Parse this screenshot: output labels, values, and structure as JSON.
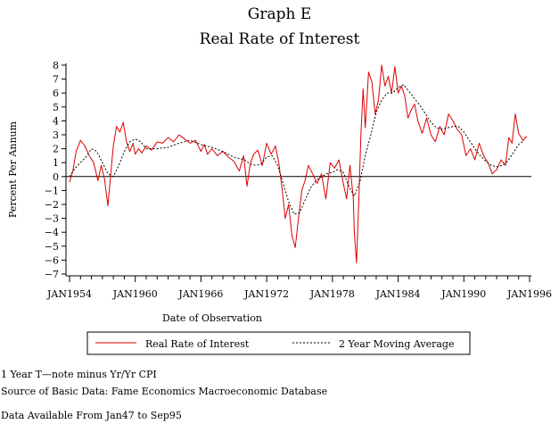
{
  "chart_data": {
    "type": "line",
    "title": "Graph E",
    "subtitle": "Real Rate of Interest",
    "xlabel": "Date of Observation",
    "ylabel": "Percent Per Annum",
    "ylim": [
      -7,
      8
    ],
    "xlim": [
      1954,
      1996
    ],
    "x_ticks": [
      "JAN1954",
      "JAN1960",
      "JAN1966",
      "JAN1972",
      "JAN1978",
      "JAN1984",
      "JAN1990",
      "JAN1996"
    ],
    "y_ticks": [
      8,
      7,
      6,
      5,
      4,
      3,
      2,
      1,
      0,
      -1,
      -2,
      -3,
      -4,
      -5,
      -6,
      -7
    ],
    "y_tick_labels": [
      "8",
      "7",
      "6",
      "5",
      "4",
      "3",
      "2",
      "1",
      "0",
      "−1",
      "−2",
      "−3",
      "−4",
      "−5",
      "−6",
      "−7"
    ],
    "grid": false,
    "legend_position": "bottom",
    "series": [
      {
        "name": "Real Rate of Interest",
        "color": "#dd0000",
        "style": "solid",
        "x": [
          1954.0,
          1954.3,
          1954.6,
          1955.0,
          1955.4,
          1955.8,
          1956.2,
          1956.6,
          1956.9,
          1957.2,
          1957.5,
          1957.8,
          1958.0,
          1958.3,
          1958.6,
          1958.9,
          1959.2,
          1959.5,
          1959.8,
          1960.0,
          1960.3,
          1960.6,
          1961.0,
          1961.5,
          1962.0,
          1962.5,
          1963.0,
          1963.5,
          1964.0,
          1964.5,
          1965.0,
          1965.5,
          1966.0,
          1966.3,
          1966.6,
          1967.0,
          1967.5,
          1968.0,
          1968.5,
          1969.0,
          1969.5,
          1969.9,
          1970.2,
          1970.5,
          1970.8,
          1971.2,
          1971.6,
          1972.0,
          1972.4,
          1972.8,
          1973.1,
          1973.4,
          1973.7,
          1974.0,
          1974.3,
          1974.6,
          1974.9,
          1975.2,
          1975.5,
          1975.8,
          1976.2,
          1976.6,
          1977.0,
          1977.4,
          1977.8,
          1978.2,
          1978.6,
          1979.0,
          1979.3,
          1979.6,
          1979.9,
          1980.0,
          1980.2,
          1980.4,
          1980.6,
          1980.8,
          1981.0,
          1981.3,
          1981.6,
          1981.9,
          1982.2,
          1982.5,
          1982.8,
          1983.1,
          1983.4,
          1983.7,
          1984.0,
          1984.3,
          1984.6,
          1984.9,
          1985.2,
          1985.5,
          1985.8,
          1986.2,
          1986.6,
          1987.0,
          1987.4,
          1987.8,
          1988.2,
          1988.6,
          1989.0,
          1989.4,
          1989.8,
          1990.2,
          1990.6,
          1991.0,
          1991.4,
          1991.8,
          1992.2,
          1992.6,
          1993.0,
          1993.4,
          1993.8,
          1994.1,
          1994.4,
          1994.7,
          1995.0,
          1995.4,
          1995.75
        ],
        "y": [
          -0.4,
          0.4,
          1.8,
          2.6,
          2.2,
          1.5,
          1.0,
          -0.3,
          0.8,
          -0.2,
          -2.1,
          0.5,
          2.2,
          3.6,
          3.2,
          3.9,
          2.5,
          1.8,
          2.4,
          1.6,
          2.0,
          1.7,
          2.2,
          1.9,
          2.5,
          2.4,
          2.8,
          2.5,
          3.0,
          2.7,
          2.4,
          2.6,
          1.8,
          2.3,
          1.6,
          2.0,
          1.5,
          1.8,
          1.4,
          1.1,
          0.4,
          1.5,
          -0.7,
          0.9,
          1.6,
          1.9,
          0.8,
          2.4,
          1.6,
          2.2,
          1.0,
          -0.8,
          -3.0,
          -2.0,
          -4.2,
          -5.1,
          -3.0,
          -1.0,
          -0.3,
          0.8,
          0.2,
          -0.5,
          0.2,
          -1.6,
          1.0,
          0.6,
          1.2,
          -0.5,
          -1.6,
          0.8,
          -1.5,
          -4.0,
          -6.2,
          -2.0,
          3.0,
          6.3,
          3.5,
          7.5,
          6.8,
          4.5,
          5.5,
          8.0,
          6.5,
          7.2,
          6.0,
          7.9,
          6.0,
          6.5,
          5.8,
          4.2,
          4.8,
          5.2,
          4.0,
          3.1,
          4.2,
          3.0,
          2.5,
          3.6,
          3.0,
          4.5,
          4.0,
          3.4,
          3.0,
          1.5,
          2.0,
          1.2,
          2.4,
          1.5,
          1.0,
          0.2,
          0.5,
          1.2,
          0.8,
          2.8,
          2.4,
          4.5,
          3.1,
          2.6,
          2.9
        ]
      },
      {
        "name": "2 Year Moving Average",
        "color": "#000000",
        "style": "dotted",
        "x": [
          1954.0,
          1954.5,
          1955.0,
          1955.5,
          1956.0,
          1956.5,
          1957.0,
          1957.5,
          1958.0,
          1958.5,
          1959.0,
          1959.5,
          1960.0,
          1960.5,
          1961.0,
          1962.0,
          1963.0,
          1964.0,
          1965.0,
          1966.0,
          1967.0,
          1968.0,
          1969.0,
          1970.0,
          1970.5,
          1971.0,
          1971.5,
          1972.0,
          1972.5,
          1973.0,
          1973.5,
          1974.0,
          1974.5,
          1975.0,
          1975.5,
          1976.0,
          1976.5,
          1977.0,
          1977.5,
          1978.0,
          1978.5,
          1979.0,
          1979.5,
          1980.0,
          1980.5,
          1981.0,
          1981.5,
          1982.0,
          1982.5,
          1983.0,
          1983.5,
          1984.0,
          1984.5,
          1985.0,
          1985.5,
          1986.0,
          1986.5,
          1987.0,
          1987.5,
          1988.0,
          1988.5,
          1989.0,
          1989.5,
          1990.0,
          1990.5,
          1991.0,
          1991.5,
          1992.0,
          1992.5,
          1993.0,
          1993.5,
          1994.0,
          1994.5,
          1995.0,
          1995.5
        ],
        "y": [
          0.0,
          0.6,
          1.0,
          1.4,
          2.0,
          1.8,
          1.0,
          0.2,
          0.0,
          0.8,
          1.8,
          2.5,
          2.7,
          2.5,
          2.0,
          2.0,
          2.1,
          2.4,
          2.6,
          2.3,
          2.1,
          1.8,
          1.4,
          1.2,
          0.9,
          0.8,
          0.9,
          1.4,
          1.5,
          0.8,
          -0.5,
          -1.8,
          -2.7,
          -2.6,
          -1.7,
          -0.8,
          -0.3,
          0.0,
          0.2,
          0.3,
          0.5,
          0.3,
          -0.7,
          -1.4,
          -0.4,
          1.5,
          3.0,
          4.6,
          5.5,
          6.0,
          6.0,
          6.4,
          6.6,
          6.1,
          5.6,
          5.1,
          4.5,
          3.9,
          3.5,
          3.4,
          3.5,
          3.6,
          3.6,
          3.2,
          2.6,
          2.0,
          1.5,
          1.1,
          0.8,
          0.7,
          0.8,
          1.1,
          1.7,
          2.3,
          2.6
        ]
      }
    ]
  },
  "notes": [
    "1 Year T—note minus Yr/Yr CPI",
    "Source of Basic Data: Fame Economics Macroeconomic Database",
    "Data Available From Jan47 to Sep95"
  ]
}
